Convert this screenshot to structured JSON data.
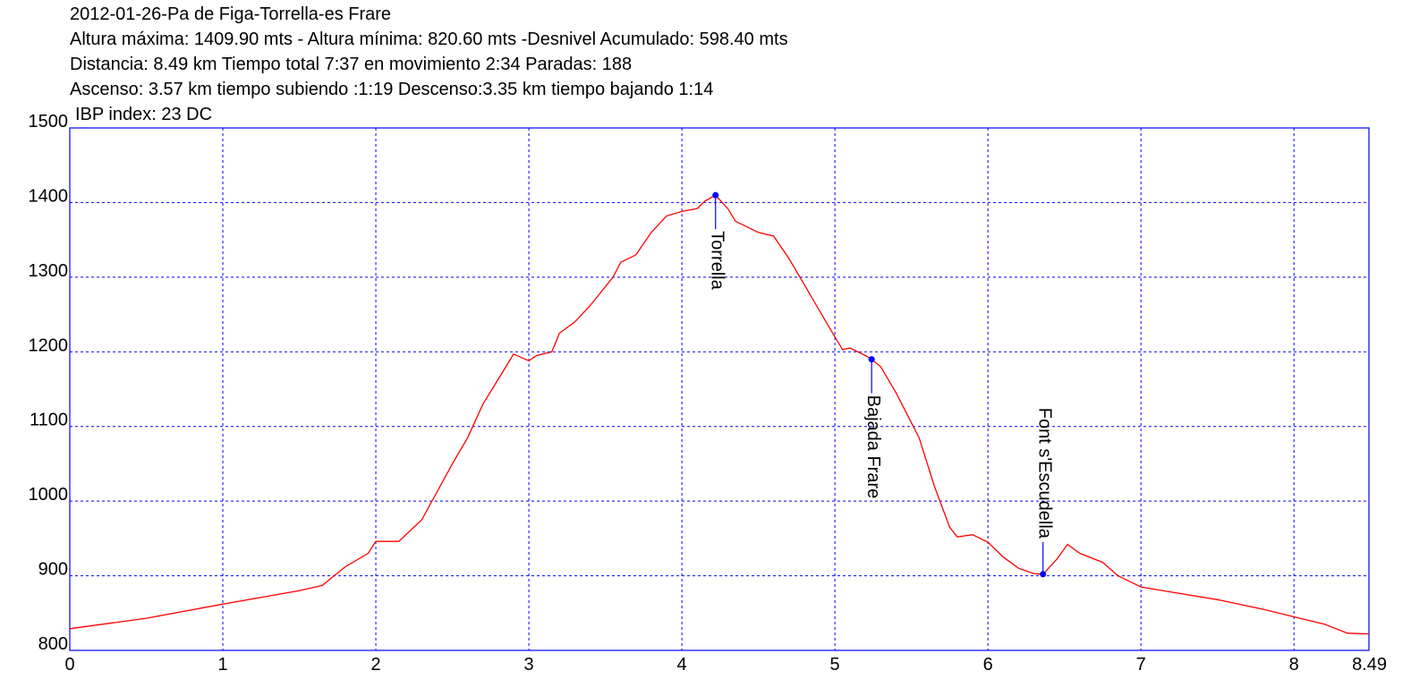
{
  "chart_data": {
    "type": "line",
    "title": "2012-01-26-Pa de Figa-Torrella-es Frare",
    "subtitle": [
      "Altura máxima: 1409.90 mts - Altura mínima: 820.60 mts -Desnivel Acumulado: 598.40 mts",
      "Distancia: 8.49 km  Tiempo total 7:37  en movimiento 2:34 Paradas: 188",
      "Ascenso: 3.57 km  tiempo subiendo :1:19  Descenso:3.35 km tiempo bajando 1:14",
      "IBP index: 23 DC"
    ],
    "x": [
      0,
      0.5,
      1.0,
      1.5,
      1.65,
      1.8,
      1.95,
      2.0,
      2.15,
      2.3,
      2.5,
      2.6,
      2.7,
      2.85,
      2.9,
      3.0,
      3.05,
      3.15,
      3.2,
      3.3,
      3.4,
      3.55,
      3.6,
      3.7,
      3.8,
      3.9,
      4.0,
      4.1,
      4.15,
      4.22,
      4.3,
      4.35,
      4.5,
      4.6,
      4.7,
      4.8,
      4.9,
      5.0,
      5.05,
      5.1,
      5.2,
      5.24,
      5.3,
      5.4,
      5.55,
      5.65,
      5.75,
      5.8,
      5.9,
      6.0,
      6.1,
      6.2,
      6.3,
      6.36,
      6.45,
      6.52,
      6.6,
      6.75,
      6.85,
      7.0,
      7.2,
      7.5,
      7.8,
      8.0,
      8.2,
      8.35,
      8.49
    ],
    "series": [
      {
        "name": "Altura",
        "color": "#ff0000",
        "values": [
          829,
          843,
          862,
          880,
          887,
          912,
          930,
          946,
          946,
          975,
          1050,
          1085,
          1130,
          1180,
          1197,
          1188,
          1195,
          1200,
          1225,
          1240,
          1262,
          1300,
          1320,
          1330,
          1360,
          1382,
          1388,
          1392,
          1402,
          1409.9,
          1392,
          1375,
          1360,
          1355,
          1325,
          1290,
          1255,
          1220,
          1203,
          1205,
          1195,
          1190,
          1180,
          1145,
          1085,
          1020,
          965,
          952,
          955,
          945,
          925,
          910,
          903,
          902,
          922,
          942,
          930,
          918,
          900,
          885,
          878,
          868,
          855,
          845,
          835,
          823,
          822
        ]
      }
    ],
    "annotations": [
      {
        "text": "Torrella",
        "x": 4.22,
        "y": 1409.9
      },
      {
        "text": "Bajada Frare",
        "x": 5.24,
        "y": 1190
      },
      {
        "text": "Font s'Escudella",
        "x": 6.36,
        "y": 902
      }
    ],
    "marker_color": "#0000ff",
    "xlim": [
      0,
      8.49
    ],
    "xticks": [
      0,
      1,
      2,
      3,
      4,
      5,
      6,
      7,
      8,
      8.49
    ],
    "ylim": [
      800,
      1500
    ],
    "yticks": [
      800,
      900,
      1000,
      1100,
      1200,
      1300,
      1400,
      1500
    ],
    "grid": true,
    "grid_color": "#0000ff"
  }
}
